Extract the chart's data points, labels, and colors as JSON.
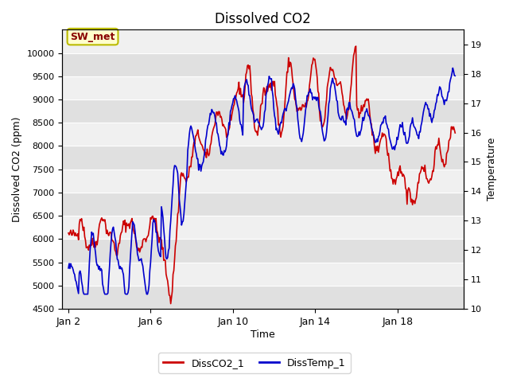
{
  "title": "Dissolved CO2",
  "xlabel": "Time",
  "ylabel_left": "Dissolved CO2 (ppm)",
  "ylabel_right": "Temperature",
  "legend_labels": [
    "DissCO2_1",
    "DissTemp_1"
  ],
  "color_co2": "#cc0000",
  "color_temp": "#0000cc",
  "ylim_left": [
    4500,
    10500
  ],
  "ylim_right": [
    10.0,
    19.5
  ],
  "yticks_left": [
    4500,
    5000,
    5500,
    6000,
    6500,
    7000,
    7500,
    8000,
    8500,
    9000,
    9500,
    10000
  ],
  "yticks_right": [
    10.0,
    11.0,
    12.0,
    13.0,
    14.0,
    15.0,
    16.0,
    17.0,
    18.0,
    19.0
  ],
  "fig_bg_color": "#ffffff",
  "plot_bg_color": "#f0f0f0",
  "band_color_dark": "#e0e0e0",
  "band_color_light": "#f0f0f0",
  "annotation_text": "SW_met",
  "annotation_bg": "#ffffcc",
  "annotation_border": "#bbbb00",
  "annotation_text_color": "#880000",
  "grid_color": "#ffffff",
  "x_tick_labels": [
    "Jan 2",
    "Jan 6",
    "Jan 10",
    "Jan 14",
    "Jan 18"
  ],
  "x_tick_positions": [
    1,
    5,
    9,
    13,
    17
  ],
  "lw": 1.2
}
